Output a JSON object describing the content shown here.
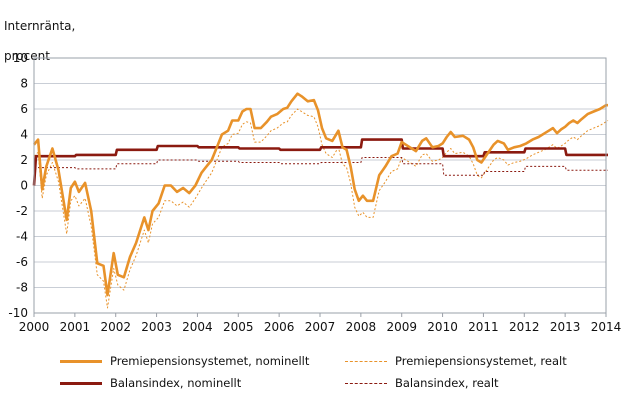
{
  "chart_data": {
    "type": "line",
    "title": "",
    "ylabel_lines": [
      "Internränta,",
      "procent"
    ],
    "xlabel": "",
    "xlim": [
      2000,
      2014
    ],
    "ylim": [
      -10,
      10
    ],
    "yticks": [
      -10,
      -8,
      -6,
      -4,
      -2,
      0,
      2,
      4,
      6,
      8,
      10
    ],
    "xticks": [
      2000,
      2001,
      2002,
      2003,
      2004,
      2005,
      2006,
      2007,
      2008,
      2009,
      2010,
      2011,
      2012,
      2013,
      2014
    ],
    "grid": true,
    "legend_position": "bottom",
    "series": [
      {
        "name": "Premiepensionsystemet, nominellt",
        "color": "#e8922a",
        "style": "solid",
        "points": [
          [
            2000.0,
            3.2
          ],
          [
            2000.1,
            3.6
          ],
          [
            2000.2,
            -0.3
          ],
          [
            2000.3,
            1.5
          ],
          [
            2000.45,
            2.9
          ],
          [
            2000.6,
            1.2
          ],
          [
            2000.8,
            -2.7
          ],
          [
            2000.9,
            -0.2
          ],
          [
            2001.0,
            0.3
          ],
          [
            2001.1,
            -0.5
          ],
          [
            2001.25,
            0.2
          ],
          [
            2001.4,
            -2.0
          ],
          [
            2001.55,
            -6.1
          ],
          [
            2001.7,
            -6.3
          ],
          [
            2001.8,
            -8.6
          ],
          [
            2001.95,
            -5.3
          ],
          [
            2002.05,
            -7.0
          ],
          [
            2002.2,
            -7.2
          ],
          [
            2002.35,
            -5.6
          ],
          [
            2002.5,
            -4.5
          ],
          [
            2002.7,
            -2.5
          ],
          [
            2002.8,
            -3.5
          ],
          [
            2002.9,
            -2.0
          ],
          [
            2003.05,
            -1.4
          ],
          [
            2003.2,
            0.0
          ],
          [
            2003.35,
            0.0
          ],
          [
            2003.5,
            -0.5
          ],
          [
            2003.65,
            -0.2
          ],
          [
            2003.8,
            -0.6
          ],
          [
            2003.95,
            0.0
          ],
          [
            2004.1,
            1.0
          ],
          [
            2004.2,
            1.4
          ],
          [
            2004.35,
            2.0
          ],
          [
            2004.5,
            3.2
          ],
          [
            2004.6,
            4.0
          ],
          [
            2004.75,
            4.3
          ],
          [
            2004.85,
            5.1
          ],
          [
            2005.0,
            5.1
          ],
          [
            2005.1,
            5.8
          ],
          [
            2005.2,
            6.0
          ],
          [
            2005.3,
            6.0
          ],
          [
            2005.4,
            4.5
          ],
          [
            2005.55,
            4.5
          ],
          [
            2005.7,
            5.0
          ],
          [
            2005.8,
            5.4
          ],
          [
            2005.95,
            5.6
          ],
          [
            2006.1,
            6.0
          ],
          [
            2006.2,
            6.1
          ],
          [
            2006.3,
            6.6
          ],
          [
            2006.45,
            7.2
          ],
          [
            2006.55,
            7.0
          ],
          [
            2006.7,
            6.6
          ],
          [
            2006.85,
            6.7
          ],
          [
            2006.95,
            5.9
          ],
          [
            2007.05,
            4.5
          ],
          [
            2007.15,
            3.7
          ],
          [
            2007.3,
            3.5
          ],
          [
            2007.45,
            4.3
          ],
          [
            2007.55,
            3.0
          ],
          [
            2007.65,
            2.8
          ],
          [
            2007.75,
            1.5
          ],
          [
            2007.85,
            -0.3
          ],
          [
            2007.95,
            -1.2
          ],
          [
            2008.05,
            -0.8
          ],
          [
            2008.15,
            -1.2
          ],
          [
            2008.3,
            -1.2
          ],
          [
            2008.45,
            0.8
          ],
          [
            2008.6,
            1.5
          ],
          [
            2008.75,
            2.3
          ],
          [
            2008.9,
            2.5
          ],
          [
            2009.0,
            3.4
          ],
          [
            2009.1,
            3.2
          ],
          [
            2009.2,
            3.0
          ],
          [
            2009.35,
            2.7
          ],
          [
            2009.5,
            3.5
          ],
          [
            2009.6,
            3.7
          ],
          [
            2009.75,
            3.0
          ],
          [
            2009.9,
            3.1
          ],
          [
            2010.0,
            3.3
          ],
          [
            2010.1,
            3.8
          ],
          [
            2010.2,
            4.2
          ],
          [
            2010.3,
            3.8
          ],
          [
            2010.5,
            3.9
          ],
          [
            2010.65,
            3.6
          ],
          [
            2010.75,
            3.0
          ],
          [
            2010.85,
            2.0
          ],
          [
            2010.95,
            1.8
          ],
          [
            2011.1,
            2.5
          ],
          [
            2011.25,
            3.2
          ],
          [
            2011.35,
            3.5
          ],
          [
            2011.5,
            3.3
          ],
          [
            2011.6,
            2.8
          ],
          [
            2011.75,
            3.0
          ],
          [
            2011.9,
            3.1
          ],
          [
            2012.05,
            3.3
          ],
          [
            2012.2,
            3.6
          ],
          [
            2012.35,
            3.8
          ],
          [
            2012.5,
            4.1
          ],
          [
            2012.6,
            4.3
          ],
          [
            2012.7,
            4.5
          ],
          [
            2012.8,
            4.1
          ],
          [
            2012.9,
            4.4
          ],
          [
            2013.0,
            4.6
          ],
          [
            2013.1,
            4.9
          ],
          [
            2013.2,
            5.1
          ],
          [
            2013.3,
            4.9
          ],
          [
            2013.4,
            5.2
          ],
          [
            2013.55,
            5.6
          ],
          [
            2013.7,
            5.8
          ],
          [
            2013.85,
            6.0
          ],
          [
            2014.0,
            6.3
          ],
          [
            2014.05,
            6.3
          ]
        ]
      },
      {
        "name": "Premiepensionsystemet, realt",
        "color": "#e8922a",
        "style": "dashed",
        "points": [
          [
            2000.0,
            2.3
          ],
          [
            2000.1,
            2.6
          ],
          [
            2000.2,
            -1.0
          ],
          [
            2000.3,
            0.8
          ],
          [
            2000.45,
            1.8
          ],
          [
            2000.6,
            0.3
          ],
          [
            2000.8,
            -3.8
          ],
          [
            2000.9,
            -1.2
          ],
          [
            2001.0,
            -0.8
          ],
          [
            2001.1,
            -1.6
          ],
          [
            2001.25,
            -1.0
          ],
          [
            2001.4,
            -3.2
          ],
          [
            2001.55,
            -7.0
          ],
          [
            2001.7,
            -7.5
          ],
          [
            2001.8,
            -9.6
          ],
          [
            2001.95,
            -6.5
          ],
          [
            2002.05,
            -7.8
          ],
          [
            2002.2,
            -8.2
          ],
          [
            2002.35,
            -6.6
          ],
          [
            2002.5,
            -5.5
          ],
          [
            2002.7,
            -3.5
          ],
          [
            2002.8,
            -4.5
          ],
          [
            2002.9,
            -3.0
          ],
          [
            2003.05,
            -2.5
          ],
          [
            2003.2,
            -1.2
          ],
          [
            2003.35,
            -1.2
          ],
          [
            2003.5,
            -1.6
          ],
          [
            2003.65,
            -1.3
          ],
          [
            2003.8,
            -1.7
          ],
          [
            2003.95,
            -1.0
          ],
          [
            2004.1,
            -0.2
          ],
          [
            2004.2,
            0.3
          ],
          [
            2004.35,
            1.0
          ],
          [
            2004.5,
            2.2
          ],
          [
            2004.6,
            3.0
          ],
          [
            2004.75,
            3.3
          ],
          [
            2004.85,
            4.0
          ],
          [
            2005.0,
            4.1
          ],
          [
            2005.1,
            4.8
          ],
          [
            2005.2,
            5.0
          ],
          [
            2005.3,
            4.9
          ],
          [
            2005.4,
            3.4
          ],
          [
            2005.55,
            3.4
          ],
          [
            2005.7,
            3.9
          ],
          [
            2005.8,
            4.3
          ],
          [
            2005.95,
            4.5
          ],
          [
            2006.1,
            4.9
          ],
          [
            2006.2,
            5.0
          ],
          [
            2006.3,
            5.5
          ],
          [
            2006.45,
            6.0
          ],
          [
            2006.55,
            5.8
          ],
          [
            2006.7,
            5.5
          ],
          [
            2006.85,
            5.4
          ],
          [
            2006.95,
            4.6
          ],
          [
            2007.05,
            3.2
          ],
          [
            2007.15,
            2.5
          ],
          [
            2007.3,
            2.2
          ],
          [
            2007.45,
            3.0
          ],
          [
            2007.55,
            1.7
          ],
          [
            2007.65,
            1.4
          ],
          [
            2007.75,
            0.2
          ],
          [
            2007.85,
            -1.7
          ],
          [
            2007.95,
            -2.4
          ],
          [
            2008.05,
            -2.1
          ],
          [
            2008.15,
            -2.5
          ],
          [
            2008.3,
            -2.5
          ],
          [
            2008.45,
            -0.4
          ],
          [
            2008.6,
            0.3
          ],
          [
            2008.75,
            1.1
          ],
          [
            2008.9,
            1.3
          ],
          [
            2009.0,
            2.2
          ],
          [
            2009.1,
            2.0
          ],
          [
            2009.2,
            1.8
          ],
          [
            2009.35,
            1.5
          ],
          [
            2009.5,
            2.4
          ],
          [
            2009.6,
            2.5
          ],
          [
            2009.75,
            1.9
          ],
          [
            2009.9,
            2.0
          ],
          [
            2010.0,
            2.2
          ],
          [
            2010.1,
            2.6
          ],
          [
            2010.2,
            2.9
          ],
          [
            2010.3,
            2.5
          ],
          [
            2010.5,
            2.6
          ],
          [
            2010.65,
            2.3
          ],
          [
            2010.75,
            1.7
          ],
          [
            2010.85,
            0.8
          ],
          [
            2010.95,
            0.6
          ],
          [
            2011.1,
            1.3
          ],
          [
            2011.25,
            2.0
          ],
          [
            2011.35,
            2.2
          ],
          [
            2011.5,
            2.0
          ],
          [
            2011.6,
            1.6
          ],
          [
            2011.75,
            1.8
          ],
          [
            2011.9,
            1.9
          ],
          [
            2012.05,
            2.1
          ],
          [
            2012.2,
            2.4
          ],
          [
            2012.35,
            2.6
          ],
          [
            2012.5,
            2.8
          ],
          [
            2012.6,
            3.0
          ],
          [
            2012.7,
            3.2
          ],
          [
            2012.8,
            2.9
          ],
          [
            2012.9,
            3.1
          ],
          [
            2013.0,
            3.3
          ],
          [
            2013.1,
            3.6
          ],
          [
            2013.2,
            3.8
          ],
          [
            2013.3,
            3.6
          ],
          [
            2013.4,
            3.9
          ],
          [
            2013.55,
            4.3
          ],
          [
            2013.7,
            4.5
          ],
          [
            2013.85,
            4.7
          ],
          [
            2014.0,
            5.0
          ],
          [
            2014.05,
            5.1
          ]
        ]
      },
      {
        "name": "Balansindex, nominellt",
        "color": "#8b1a10",
        "style": "solid",
        "points": [
          [
            2000.0,
            0.0
          ],
          [
            2000.05,
            2.3
          ],
          [
            2001.0,
            2.3
          ],
          [
            2001.03,
            2.4
          ],
          [
            2002.0,
            2.4
          ],
          [
            2002.03,
            2.8
          ],
          [
            2003.0,
            2.8
          ],
          [
            2003.03,
            3.1
          ],
          [
            2004.0,
            3.1
          ],
          [
            2004.03,
            3.0
          ],
          [
            2005.0,
            3.0
          ],
          [
            2005.03,
            2.9
          ],
          [
            2006.0,
            2.9
          ],
          [
            2006.03,
            2.8
          ],
          [
            2007.0,
            2.8
          ],
          [
            2007.03,
            3.0
          ],
          [
            2008.0,
            3.0
          ],
          [
            2008.03,
            3.6
          ],
          [
            2009.0,
            3.6
          ],
          [
            2009.03,
            2.9
          ],
          [
            2010.0,
            2.9
          ],
          [
            2010.03,
            2.3
          ],
          [
            2011.0,
            2.3
          ],
          [
            2011.03,
            2.6
          ],
          [
            2012.0,
            2.6
          ],
          [
            2012.03,
            2.9
          ],
          [
            2013.0,
            2.9
          ],
          [
            2013.03,
            2.4
          ],
          [
            2014.05,
            2.4
          ]
        ]
      },
      {
        "name": "Balansindex, realt",
        "color": "#8b1a10",
        "style": "dashed",
        "points": [
          [
            2000.0,
            0.0
          ],
          [
            2000.05,
            1.4
          ],
          [
            2001.0,
            1.4
          ],
          [
            2001.03,
            1.3
          ],
          [
            2002.0,
            1.3
          ],
          [
            2002.03,
            1.7
          ],
          [
            2003.0,
            1.7
          ],
          [
            2003.03,
            2.0
          ],
          [
            2004.0,
            2.0
          ],
          [
            2004.03,
            1.9
          ],
          [
            2005.0,
            1.9
          ],
          [
            2005.03,
            1.8
          ],
          [
            2006.0,
            1.8
          ],
          [
            2006.03,
            1.7
          ],
          [
            2007.0,
            1.7
          ],
          [
            2007.03,
            1.8
          ],
          [
            2008.0,
            1.8
          ],
          [
            2008.03,
            2.2
          ],
          [
            2009.0,
            2.2
          ],
          [
            2009.03,
            1.7
          ],
          [
            2010.0,
            1.7
          ],
          [
            2010.03,
            0.8
          ],
          [
            2011.0,
            0.8
          ],
          [
            2011.03,
            1.1
          ],
          [
            2012.0,
            1.1
          ],
          [
            2012.03,
            1.5
          ],
          [
            2013.0,
            1.5
          ],
          [
            2013.03,
            1.2
          ],
          [
            2014.05,
            1.2
          ]
        ]
      }
    ]
  }
}
